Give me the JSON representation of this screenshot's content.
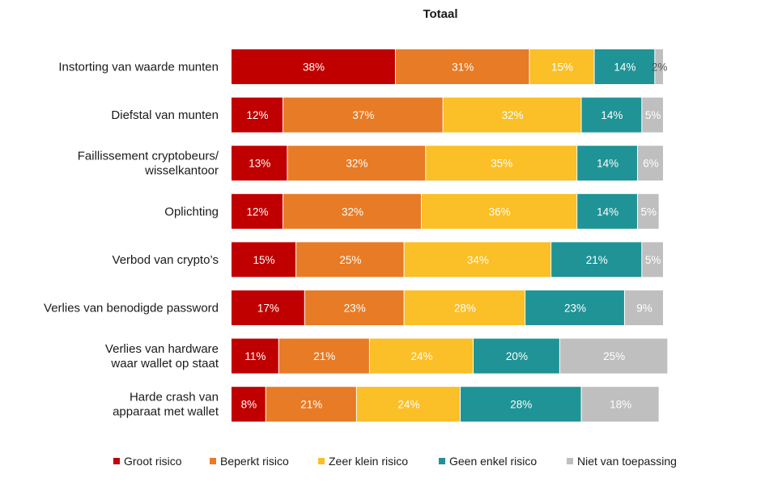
{
  "chart_data": {
    "type": "bar",
    "orientation": "horizontal",
    "stacked": true,
    "title": "Totaal",
    "categories": [
      "Instorting van waarde munten",
      "Diefstal van munten",
      "Faillissement cryptobeurs/ wisselkantoor",
      "Oplichting",
      "Verbod van crypto’s",
      "Verlies van benodigde password",
      "Verlies van hardware waar wallet op staat",
      "Harde crash van apparaat met wallet"
    ],
    "category_lines": [
      [
        "Instorting van waarde munten"
      ],
      [
        "Diefstal van munten"
      ],
      [
        "Faillissement cryptobeurs/",
        "wisselkantoor"
      ],
      [
        "Oplichting"
      ],
      [
        "Verbod van crypto’s"
      ],
      [
        "Verlies van benodigde password"
      ],
      [
        "Verlies van hardware",
        "waar wallet op staat"
      ],
      [
        "Harde crash van",
        "apparaat met wallet"
      ]
    ],
    "series": [
      {
        "name": "Groot risico",
        "color": "#C00000",
        "values": [
          38,
          12,
          13,
          12,
          15,
          17,
          11,
          8
        ]
      },
      {
        "name": "Beperkt risico",
        "color": "#E87B25",
        "values": [
          31,
          37,
          32,
          32,
          25,
          23,
          21,
          21
        ]
      },
      {
        "name": "Zeer klein risico",
        "color": "#FBBF27",
        "values": [
          15,
          32,
          35,
          36,
          34,
          28,
          24,
          24
        ]
      },
      {
        "name": "Geen enkel risico",
        "color": "#1F9396",
        "values": [
          14,
          14,
          14,
          14,
          21,
          23,
          20,
          28
        ]
      },
      {
        "name": "Niet van toepassing",
        "color": "#BFBFBF",
        "values": [
          2,
          5,
          6,
          5,
          5,
          9,
          25,
          18
        ]
      }
    ],
    "value_suffix": "%",
    "xlim": [
      0,
      100
    ],
    "legend_position": "bottom"
  }
}
